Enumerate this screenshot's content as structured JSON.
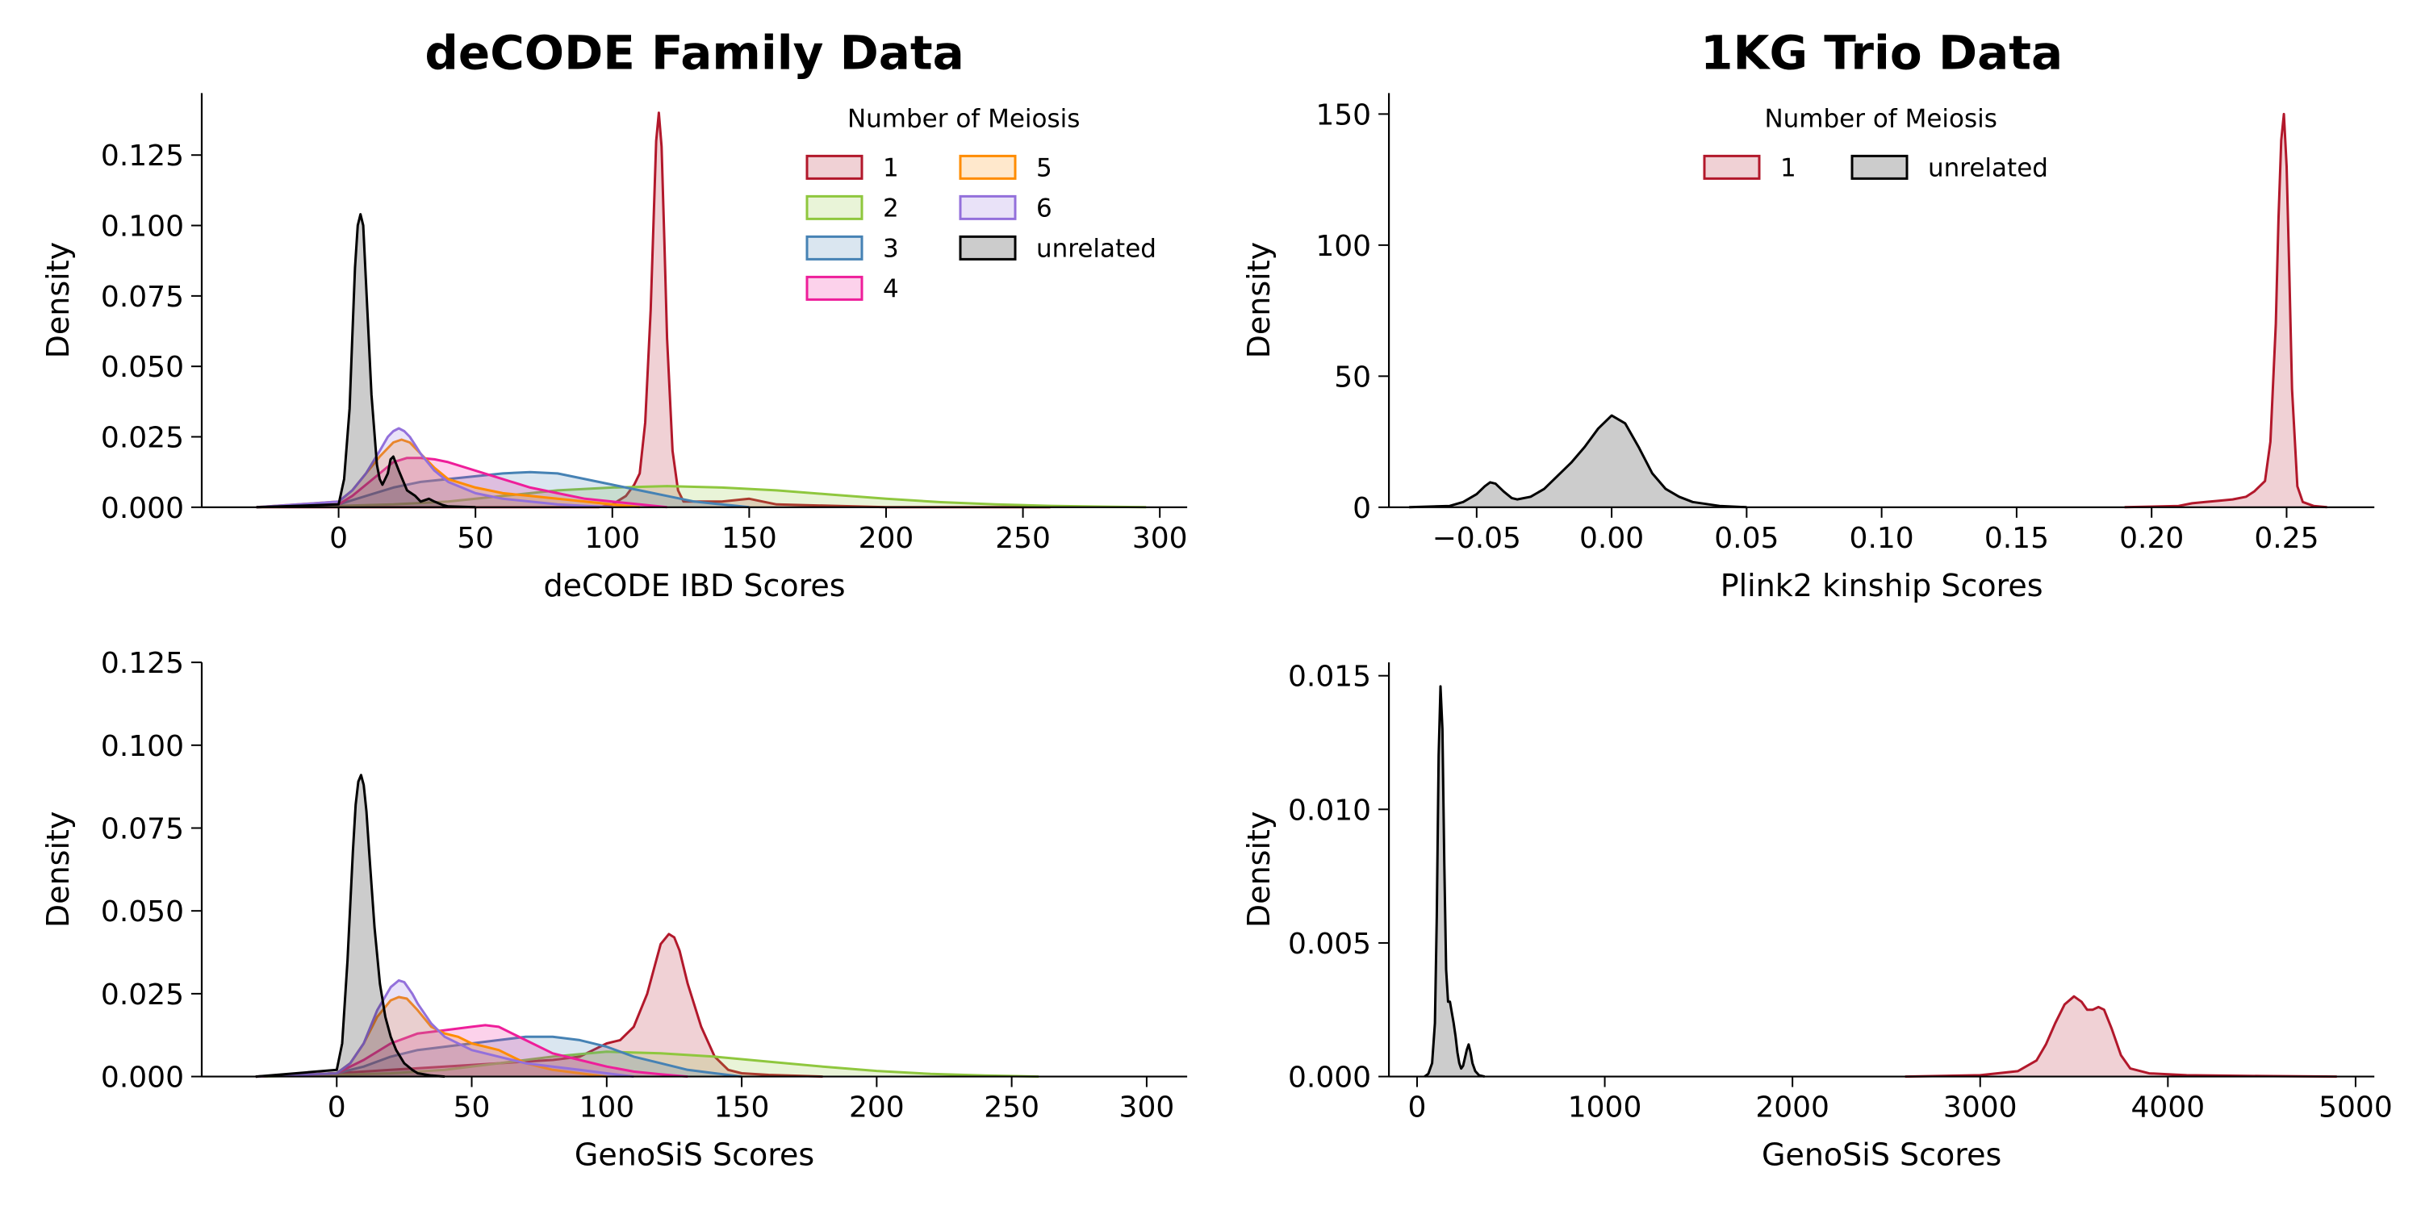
{
  "chart_data": [
    {
      "id": "p1",
      "type": "area",
      "title": "deCODE Family Data",
      "xlabel": "deCODE IBD Scores",
      "ylabel": "Density",
      "xlim": [
        -50,
        310
      ],
      "ylim": [
        0,
        0.147
      ],
      "xticks": [
        0,
        50,
        100,
        150,
        200,
        250,
        300
      ],
      "xtick_labels": [
        "0",
        "50",
        "100",
        "150",
        "200",
        "250",
        "300"
      ],
      "yticks": [
        0,
        0.025,
        0.05,
        0.075,
        0.1,
        0.125
      ],
      "ytick_labels": [
        "0.000",
        "0.025",
        "0.050",
        "0.075",
        "0.100",
        "0.125"
      ],
      "legend": {
        "title": "Number of Meiosis",
        "placement": "top-right",
        "ncol": 2
      },
      "series": [
        {
          "name": "1",
          "color": "#b2182b",
          "x": [
            -30,
            95,
            100,
            105,
            108,
            110,
            112,
            114,
            115,
            116,
            117,
            118,
            119,
            120,
            122,
            124,
            126,
            130,
            140,
            150,
            155,
            160,
            200,
            260
          ],
          "y": [
            0,
            0,
            0.001,
            0.004,
            0.008,
            0.012,
            0.03,
            0.07,
            0.1,
            0.13,
            0.14,
            0.128,
            0.095,
            0.06,
            0.02,
            0.006,
            0.002,
            0.002,
            0.002,
            0.003,
            0.002,
            0.001,
            0,
            0
          ]
        },
        {
          "name": "2",
          "color": "#8fc73e",
          "x": [
            -30,
            0,
            20,
            40,
            60,
            80,
            100,
            120,
            140,
            160,
            180,
            200,
            220,
            240,
            260,
            280,
            295
          ],
          "y": [
            0,
            0.0005,
            0.001,
            0.002,
            0.004,
            0.006,
            0.007,
            0.0075,
            0.007,
            0.006,
            0.0045,
            0.003,
            0.0018,
            0.001,
            0.0005,
            0.0002,
            0
          ],
          "opacity": 0.25
        },
        {
          "name": "3",
          "color": "#4682b4",
          "x": [
            -30,
            0,
            10,
            20,
            30,
            40,
            50,
            60,
            70,
            80,
            90,
            100,
            110,
            120,
            130,
            140,
            150
          ],
          "y": [
            0,
            0.001,
            0.004,
            0.007,
            0.009,
            0.01,
            0.011,
            0.012,
            0.0125,
            0.012,
            0.01,
            0.008,
            0.006,
            0.004,
            0.002,
            0.001,
            0
          ]
        },
        {
          "name": "4",
          "color": "#ee1e9a",
          "x": [
            -30,
            0,
            5,
            10,
            15,
            20,
            25,
            30,
            35,
            40,
            50,
            60,
            70,
            80,
            90,
            100,
            110,
            120
          ],
          "y": [
            0,
            0.001,
            0.004,
            0.008,
            0.012,
            0.016,
            0.0175,
            0.0175,
            0.017,
            0.016,
            0.013,
            0.01,
            0.007,
            0.005,
            0.003,
            0.002,
            0.001,
            0
          ]
        },
        {
          "name": "5",
          "color": "#ff8c00",
          "x": [
            -30,
            0,
            5,
            10,
            15,
            18,
            20,
            23,
            26,
            30,
            35,
            40,
            50,
            60,
            70,
            80,
            90,
            100,
            110
          ],
          "y": [
            0,
            0.002,
            0.006,
            0.012,
            0.018,
            0.021,
            0.023,
            0.024,
            0.023,
            0.019,
            0.014,
            0.01,
            0.007,
            0.005,
            0.004,
            0.003,
            0.002,
            0.001,
            0
          ]
        },
        {
          "name": "6",
          "color": "#9370db",
          "x": [
            -30,
            0,
            5,
            10,
            15,
            18,
            20,
            22,
            24,
            26,
            28,
            30,
            35,
            40,
            50,
            60,
            70,
            80,
            90,
            100
          ],
          "y": [
            0,
            0.002,
            0.006,
            0.012,
            0.02,
            0.025,
            0.027,
            0.028,
            0.027,
            0.025,
            0.022,
            0.019,
            0.013,
            0.009,
            0.005,
            0.003,
            0.002,
            0.001,
            0.0005,
            0
          ]
        },
        {
          "name": "unrelated",
          "color": "#000000",
          "x": [
            -30,
            0,
            2,
            4,
            5,
            6,
            7,
            8,
            9,
            10,
            12,
            14,
            15,
            16,
            18,
            19,
            20,
            22,
            25,
            28,
            30,
            33,
            35,
            38,
            40,
            50
          ],
          "y": [
            0,
            0.001,
            0.01,
            0.035,
            0.06,
            0.085,
            0.1,
            0.104,
            0.1,
            0.08,
            0.04,
            0.015,
            0.01,
            0.008,
            0.012,
            0.017,
            0.018,
            0.013,
            0.006,
            0.004,
            0.002,
            0.003,
            0.002,
            0.0008,
            0.0003,
            0
          ]
        }
      ]
    },
    {
      "id": "p2",
      "type": "area",
      "title": "1KG Trio Data",
      "xlabel": "Plink2 kinship Scores",
      "ylabel": "Density",
      "xlim": [
        -0.0825,
        0.2825
      ],
      "ylim": [
        0,
        158
      ],
      "xticks": [
        -0.05,
        0,
        0.05,
        0.1,
        0.15,
        0.2,
        0.25
      ],
      "xtick_labels": [
        "−0.05",
        "0.00",
        "0.05",
        "0.10",
        "0.15",
        "0.20",
        "0.25"
      ],
      "yticks": [
        0,
        50,
        100,
        150
      ],
      "ytick_labels": [
        "0",
        "50",
        "100",
        "150"
      ],
      "legend": {
        "title": "Number of Meiosis",
        "placement": "top-center",
        "ncol": 2
      },
      "series": [
        {
          "name": "1",
          "color": "#b2182b",
          "x": [
            0.19,
            0.21,
            0.215,
            0.22,
            0.225,
            0.23,
            0.235,
            0.238,
            0.24,
            0.242,
            0.244,
            0.246,
            0.247,
            0.248,
            0.249,
            0.25,
            0.251,
            0.252,
            0.254,
            0.256,
            0.26,
            0.265
          ],
          "y": [
            0,
            0.5,
            1.5,
            2,
            2.5,
            3,
            4,
            6,
            8,
            10,
            25,
            70,
            110,
            140,
            150,
            130,
            90,
            45,
            8,
            2,
            0.5,
            0
          ]
        },
        {
          "name": "unrelated",
          "color": "#000000",
          "x": [
            -0.075,
            -0.06,
            -0.055,
            -0.05,
            -0.047,
            -0.045,
            -0.043,
            -0.04,
            -0.037,
            -0.035,
            -0.03,
            -0.025,
            -0.02,
            -0.015,
            -0.01,
            -0.005,
            0,
            0.005,
            0.01,
            0.015,
            0.02,
            0.025,
            0.03,
            0.04,
            0.05
          ],
          "y": [
            0,
            0.5,
            2,
            5,
            8,
            9.5,
            9,
            6,
            3.5,
            3,
            4,
            7,
            12,
            17,
            23,
            30,
            35,
            32,
            23,
            13,
            7,
            4,
            2,
            0.5,
            0
          ]
        }
      ]
    },
    {
      "id": "p3",
      "type": "area",
      "title": "",
      "xlabel": "GenoSiS Scores",
      "ylabel": "Density",
      "xlim": [
        -50,
        315
      ],
      "ylim": [
        0,
        0.125
      ],
      "xticks": [
        0,
        50,
        100,
        150,
        200,
        250,
        300
      ],
      "xtick_labels": [
        "0",
        "50",
        "100",
        "150",
        "200",
        "250",
        "300"
      ],
      "yticks": [
        0,
        0.025,
        0.05,
        0.075,
        0.1,
        0.125
      ],
      "ytick_labels": [
        "0.000",
        "0.025",
        "0.050",
        "0.075",
        "0.100",
        "0.125"
      ],
      "series": [
        {
          "name": "1",
          "color": "#b2182b",
          "x": [
            -30,
            0,
            20,
            40,
            60,
            80,
            90,
            95,
            100,
            105,
            110,
            115,
            118,
            120,
            123,
            125,
            127,
            130,
            135,
            140,
            145,
            150,
            160,
            180
          ],
          "y": [
            0,
            0.001,
            0.002,
            0.003,
            0.004,
            0.005,
            0.006,
            0.008,
            0.01,
            0.011,
            0.015,
            0.025,
            0.034,
            0.04,
            0.043,
            0.042,
            0.038,
            0.028,
            0.015,
            0.006,
            0.002,
            0.001,
            0.0005,
            0
          ]
        },
        {
          "name": "2",
          "color": "#8fc73e",
          "x": [
            -30,
            0,
            20,
            40,
            60,
            80,
            100,
            120,
            140,
            160,
            180,
            200,
            220,
            240,
            260
          ],
          "y": [
            0,
            0.0005,
            0.001,
            0.002,
            0.004,
            0.006,
            0.0075,
            0.007,
            0.006,
            0.0045,
            0.003,
            0.0017,
            0.0008,
            0.0003,
            0
          ]
        },
        {
          "name": "3",
          "color": "#4682b4",
          "x": [
            -30,
            0,
            10,
            20,
            30,
            40,
            50,
            60,
            70,
            80,
            90,
            100,
            110,
            120,
            130,
            140,
            150
          ],
          "y": [
            0,
            0.001,
            0.003,
            0.006,
            0.008,
            0.009,
            0.01,
            0.011,
            0.012,
            0.012,
            0.011,
            0.009,
            0.006,
            0.004,
            0.002,
            0.001,
            0
          ]
        },
        {
          "name": "4",
          "color": "#ee1e9a",
          "x": [
            -30,
            0,
            10,
            20,
            30,
            40,
            50,
            55,
            60,
            70,
            80,
            90,
            100,
            110,
            120,
            130
          ],
          "y": [
            0,
            0.001,
            0.005,
            0.01,
            0.013,
            0.014,
            0.015,
            0.0155,
            0.015,
            0.011,
            0.007,
            0.005,
            0.003,
            0.0015,
            0.0007,
            0
          ]
        },
        {
          "name": "5",
          "color": "#ff8c00",
          "x": [
            -30,
            0,
            5,
            10,
            15,
            20,
            23,
            26,
            30,
            35,
            40,
            45,
            50,
            55,
            60,
            70,
            80,
            90,
            100
          ],
          "y": [
            0,
            0.001,
            0.004,
            0.01,
            0.018,
            0.023,
            0.024,
            0.0235,
            0.02,
            0.015,
            0.013,
            0.012,
            0.01,
            0.009,
            0.008,
            0.004,
            0.002,
            0.001,
            0
          ]
        },
        {
          "name": "6",
          "color": "#9370db",
          "x": [
            -30,
            0,
            5,
            10,
            15,
            20,
            23,
            25,
            28,
            30,
            35,
            40,
            50,
            60,
            70,
            80,
            90,
            100,
            110
          ],
          "y": [
            0,
            0.001,
            0.004,
            0.01,
            0.02,
            0.027,
            0.029,
            0.0285,
            0.025,
            0.022,
            0.016,
            0.012,
            0.008,
            0.006,
            0.004,
            0.003,
            0.002,
            0.001,
            0
          ]
        },
        {
          "name": "unrelated",
          "color": "#000000",
          "x": [
            -30,
            0,
            2,
            4,
            6,
            7,
            8,
            9,
            10,
            11,
            12,
            14,
            16,
            18,
            20,
            22,
            25,
            28,
            30,
            35,
            40
          ],
          "y": [
            0,
            0.002,
            0.01,
            0.035,
            0.068,
            0.082,
            0.089,
            0.091,
            0.088,
            0.08,
            0.068,
            0.045,
            0.028,
            0.018,
            0.012,
            0.008,
            0.004,
            0.002,
            0.001,
            0.0003,
            0
          ]
        }
      ]
    },
    {
      "id": "p4",
      "type": "area",
      "title": "",
      "xlabel": "GenoSiS Scores",
      "ylabel": "Density",
      "xlim": [
        -150,
        5100
      ],
      "ylim": [
        0,
        0.0155
      ],
      "xticks": [
        0,
        1000,
        2000,
        3000,
        4000,
        5000
      ],
      "xtick_labels": [
        "0",
        "1000",
        "2000",
        "3000",
        "4000",
        "5000"
      ],
      "yticks": [
        0,
        0.005,
        0.01,
        0.015
      ],
      "ytick_labels": [
        "0.000",
        "0.005",
        "0.010",
        "0.015"
      ],
      "series": [
        {
          "name": "1",
          "color": "#b2182b",
          "x": [
            2600,
            3000,
            3200,
            3300,
            3350,
            3400,
            3450,
            3500,
            3540,
            3570,
            3600,
            3630,
            3660,
            3700,
            3750,
            3800,
            3900,
            4100,
            4500,
            4900
          ],
          "y": [
            0,
            5e-05,
            0.0002,
            0.0006,
            0.0012,
            0.002,
            0.0027,
            0.003,
            0.0028,
            0.0025,
            0.0025,
            0.0026,
            0.0025,
            0.0018,
            0.0008,
            0.0003,
            0.00012,
            5e-05,
            2e-05,
            0
          ]
        },
        {
          "name": "unrelated",
          "color": "#000000",
          "x": [
            40,
            60,
            80,
            95,
            105,
            115,
            125,
            135,
            145,
            155,
            165,
            175,
            185,
            195,
            205,
            215,
            225,
            235,
            245,
            255,
            265,
            275,
            285,
            295,
            310,
            330,
            360
          ],
          "y": [
            0,
            0.0001,
            0.0005,
            0.002,
            0.006,
            0.012,
            0.0146,
            0.013,
            0.008,
            0.004,
            0.0028,
            0.0028,
            0.0024,
            0.002,
            0.0015,
            0.0009,
            0.0005,
            0.0003,
            0.0004,
            0.0007,
            0.001,
            0.0012,
            0.0009,
            0.0005,
            0.0002,
            5e-05,
            0
          ]
        }
      ]
    }
  ]
}
